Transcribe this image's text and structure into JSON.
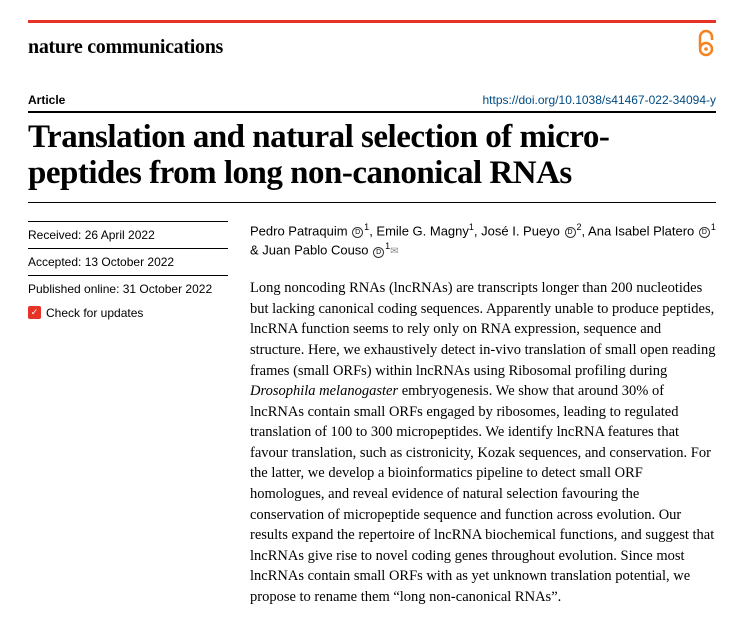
{
  "journal": "nature communications",
  "article_label": "Article",
  "doi": "https://doi.org/10.1038/s41467-022-34094-y",
  "title": "Translation and natural selection of micro-peptides from long non-canonical RNAs",
  "dates": {
    "received": "Received: 26 April 2022",
    "accepted": "Accepted: 13 October 2022",
    "published": "Published online: 31 October 2022"
  },
  "check_updates": "Check for updates",
  "authors_html": "Pedro Patraquim <span class='orcid'>D</span><span class='sup'>1</span>, Emile G. Magny<span class='sup'>1</span>, José I. Pueyo <span class='orcid'>D</span><span class='sup'>2</span>, Ana Isabel Platero <span class='orcid'>D</span><span class='sup'>1</span> & Juan Pablo Couso <span class='orcid'>D</span><span class='sup'>1</span><span class='mail'>✉</span>",
  "abstract": "Long noncoding RNAs (lncRNAs) are transcripts longer than 200 nucleotides but lacking canonical coding sequences. Apparently unable to produce peptides, lncRNA function seems to rely only on RNA expression, sequence and structure. Here, we exhaustively detect in-vivo translation of small open reading frames (small ORFs) within lncRNAs using Ribosomal profiling during <em>Drosophila melanogaster</em> embryogenesis. We show that around 30% of lncRNAs contain small ORFs engaged by ribosomes, leading to regulated translation of 100 to 300 micropeptides. We identify lncRNA features that favour translation, such as cistronicity, Kozak sequences, and conservation. For the latter, we develop a bioinformatics pipeline to detect small ORF homologues, and reveal evidence of natural selection favouring the conservation of micropeptide sequence and function across evolution. Our results expand the repertoire of lncRNA biochemical functions, and suggest that lncRNAs give rise to novel coding genes throughout evolution. Since most lncRNAs contain small ORFs with as yet unknown translation potential, we propose to rename them “long non-canonical RNAs”.",
  "colors": {
    "red_rule": "#e63227",
    "orange": "#f58220",
    "link": "#004b83"
  }
}
